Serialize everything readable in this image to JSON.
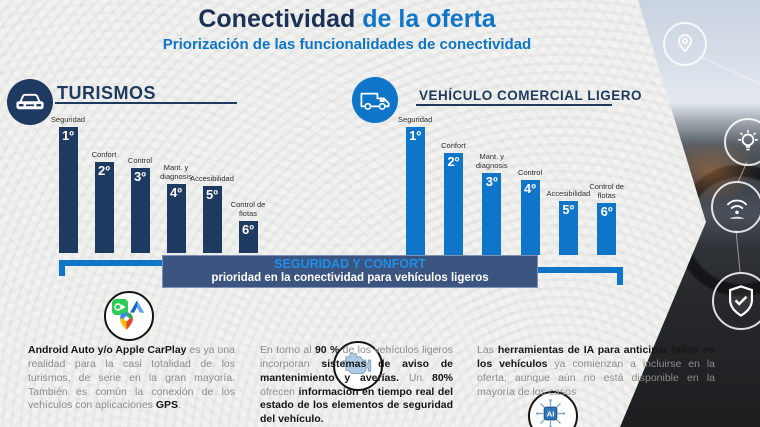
{
  "header": {
    "title_primary": "Conectividad",
    "title_secondary": " de la oferta",
    "subtitle": "Priorización de las funcionalidades de conectividad",
    "title_primary_color": "#1b3158",
    "title_secondary_color": "#0f75c8"
  },
  "chart_data": [
    {
      "type": "bar",
      "title": "TURISMOS",
      "icon": "car-icon",
      "color": "#1f3a60",
      "categories": [
        "Seguridad",
        "Confort",
        "Control",
        "Mant. y diagnosis",
        "Accesibilidad",
        "Control de flotas"
      ],
      "ranks": [
        "1º",
        "2º",
        "3º",
        "4º",
        "5º",
        "6º"
      ],
      "values": [
        126,
        91,
        85,
        69,
        67,
        32
      ],
      "value_unit": "relative-bar-height-px",
      "note": "ranking chart without numeric axis; 1º = highest connectivity priority"
    },
    {
      "type": "bar",
      "title": "VEHÍCULO COMERCIAL LIGERO",
      "icon": "van-icon",
      "color": "#0f75c8",
      "categories": [
        "Seguridad",
        "Confort",
        "Mant. y diagnosis",
        "Control",
        "Accesibilidad",
        "Control de flotas"
      ],
      "ranks": [
        "1º",
        "2º",
        "3º",
        "4º",
        "5º",
        "6º"
      ],
      "values": [
        128,
        102,
        82,
        75,
        54,
        52
      ],
      "value_unit": "relative-bar-height-px",
      "note": "ranking chart without numeric axis; 1º = highest connectivity priority"
    }
  ],
  "banner": {
    "line1": "SEGURIDAD Y CONFORT",
    "line2": "prioridad en la conectividad para vehículos ligeros",
    "line1_color": "#1f8fe8",
    "background": "#3c5580"
  },
  "insights": [
    {
      "icon": "carplay-androidauto-maps-apps-icon",
      "segments": [
        {
          "text": "Android Auto y/o Apple CarPlay",
          "bold": true
        },
        {
          "text": " es ya una realidad para la casi totalidad de los turismos, de serie en la gran mayoría. También es común la conexión de los vehículos con aplicaciones ",
          "bold": false
        },
        {
          "text": "GPS",
          "bold": true
        },
        {
          "text": ".",
          "bold": false
        }
      ]
    },
    {
      "icon": "engine-icon",
      "segments": [
        {
          "text": "En torno al ",
          "bold": false
        },
        {
          "text": "90 %",
          "bold": true
        },
        {
          "text": " de los vehículos ligeros incorporan ",
          "bold": false
        },
        {
          "text": "sistemas de aviso de mantenimiento y averías.",
          "bold": true
        },
        {
          "text": " Un ",
          "bold": false
        },
        {
          "text": "80%",
          "bold": true
        },
        {
          "text": " ofrecen ",
          "bold": false
        },
        {
          "text": "información en tiempo real del estado de los elementos de seguridad del vehículo.",
          "bold": true
        }
      ]
    },
    {
      "icon": "ai-chip-icon",
      "segments": [
        {
          "text": "Las ",
          "bold": false
        },
        {
          "text": "herramientas de IA para anticipar fallos en los vehículos",
          "bold": true
        },
        {
          "text": " ya comienzan a incluirse en la oferta, aunque aún no está disponible en la mayoría de los casos",
          "bold": false
        }
      ]
    }
  ],
  "decor": {
    "photo_icons": [
      "location-pin-icon",
      "lightbulb-icon",
      "wifi-hand-icon",
      "shield-check-icon"
    ]
  }
}
